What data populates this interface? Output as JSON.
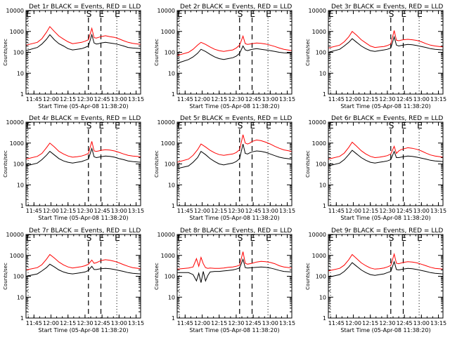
{
  "figure": {
    "x_tick_labels": [
      "11:45",
      "12:00",
      "12:15",
      "12:30",
      "12:45",
      "13:00",
      "13:15"
    ],
    "y_tick_labels": [
      "1",
      "10",
      "100",
      "1000",
      "10000"
    ],
    "xlabel": "Start Time (05-Apr-08 11:38:20)",
    "ylabel": "Counts/sec",
    "markers": [
      "E",
      "S",
      "E",
      "E"
    ],
    "colors": {
      "events": "#000000",
      "lld": "#ff0000"
    }
  },
  "chart_data": [
    {
      "type": "line",
      "title": "Det 1r BLACK = Events, RED = LLD",
      "xlabel": "Start Time (05-Apr-08 11:38:20)",
      "ylabel": "Counts/sec",
      "log_y": true,
      "ylim": [
        1,
        10000
      ],
      "xlim": [
        "11:38",
        "13:19"
      ],
      "x": [
        "11:38",
        "11:48",
        "11:52",
        "11:56",
        "11:59",
        "12:03",
        "12:07",
        "12:11",
        "12:15",
        "12:19",
        "12:23",
        "12:27",
        "12:30",
        "12:33",
        "12:36",
        "12:38",
        "12:40",
        "12:42",
        "12:44",
        "12:48",
        "12:52",
        "12:56",
        "13:00",
        "13:04",
        "13:08",
        "13:12",
        "13:19"
      ],
      "series": [
        {
          "name": "Events",
          "values": [
            120,
            170,
            250,
            420,
            700,
            400,
            260,
            200,
            150,
            130,
            140,
            150,
            170,
            200,
            700,
            280,
            250,
            260,
            280,
            300,
            280,
            260,
            230,
            200,
            170,
            160,
            150
          ]
        },
        {
          "name": "LLD",
          "values": [
            220,
            300,
            450,
            900,
            1700,
            1000,
            600,
            430,
            320,
            260,
            280,
            300,
            340,
            400,
            1400,
            500,
            480,
            520,
            560,
            620,
            560,
            520,
            440,
            360,
            300,
            270,
            240
          ]
        }
      ]
    },
    {
      "type": "line",
      "title": "Det 2r BLACK = Events, RED = LLD",
      "xlabel": "Start Time (05-Apr-08 11:38:20)",
      "ylabel": "Counts/sec",
      "log_y": true,
      "ylim": [
        1,
        10000
      ],
      "xlim": [
        "11:38",
        "13:19"
      ],
      "x": [
        "11:38",
        "11:48",
        "11:52",
        "11:56",
        "11:59",
        "12:03",
        "12:07",
        "12:11",
        "12:15",
        "12:19",
        "12:23",
        "12:27",
        "12:30",
        "12:33",
        "12:36",
        "12:38",
        "12:40",
        "12:42",
        "12:44",
        "12:48",
        "12:52",
        "12:56",
        "13:00",
        "13:04",
        "13:08",
        "13:12",
        "13:19"
      ],
      "series": [
        {
          "name": "Events",
          "values": [
            30,
            45,
            60,
            90,
            140,
            110,
            80,
            60,
            50,
            45,
            50,
            55,
            65,
            90,
            200,
            130,
            120,
            130,
            140,
            150,
            140,
            130,
            120,
            110,
            100,
            95,
            90
          ]
        },
        {
          "name": "LLD",
          "values": [
            70,
            100,
            140,
            220,
            300,
            240,
            180,
            140,
            120,
            110,
            120,
            130,
            160,
            220,
            600,
            260,
            240,
            250,
            260,
            280,
            270,
            250,
            220,
            190,
            160,
            140,
            120
          ]
        }
      ]
    },
    {
      "type": "line",
      "title": "Det 3r BLACK = Events, RED = LLD",
      "xlabel": "Start Time (05-Apr-08 11:38:20)",
      "ylabel": "Counts/sec",
      "log_y": true,
      "ylim": [
        1,
        10000
      ],
      "xlim": [
        "11:38",
        "13:19"
      ],
      "x": [
        "11:38",
        "11:48",
        "11:52",
        "11:56",
        "11:59",
        "12:03",
        "12:07",
        "12:11",
        "12:15",
        "12:19",
        "12:23",
        "12:27",
        "12:30",
        "12:33",
        "12:36",
        "12:38",
        "12:40",
        "12:42",
        "12:44",
        "12:48",
        "12:52",
        "12:56",
        "13:00",
        "13:04",
        "13:08",
        "13:12",
        "13:19"
      ],
      "series": [
        {
          "name": "Events",
          "values": [
            100,
            140,
            200,
            300,
            450,
            300,
            200,
            150,
            120,
            110,
            120,
            130,
            140,
            160,
            550,
            220,
            200,
            210,
            220,
            240,
            230,
            210,
            190,
            170,
            150,
            140,
            130
          ]
        },
        {
          "name": "LLD",
          "values": [
            160,
            220,
            320,
            550,
            1000,
            650,
            400,
            280,
            200,
            170,
            180,
            190,
            210,
            250,
            1100,
            380,
            360,
            380,
            400,
            420,
            400,
            370,
            320,
            260,
            220,
            200,
            180
          ]
        }
      ]
    },
    {
      "type": "line",
      "title": "Det 4r BLACK = Events, RED = LLD",
      "xlabel": "Start Time (05-Apr-08 11:38:20)",
      "ylabel": "Counts/sec",
      "log_y": true,
      "ylim": [
        1,
        10000
      ],
      "xlim": [
        "11:38",
        "13:19"
      ],
      "x": [
        "11:38",
        "11:48",
        "11:52",
        "11:56",
        "11:59",
        "12:03",
        "12:07",
        "12:11",
        "12:15",
        "12:19",
        "12:23",
        "12:27",
        "12:30",
        "12:33",
        "12:36",
        "12:38",
        "12:40",
        "12:42",
        "12:44",
        "12:48",
        "12:52",
        "12:56",
        "13:00",
        "13:04",
        "13:08",
        "13:12",
        "13:19"
      ],
      "series": [
        {
          "name": "Events",
          "values": [
            80,
            110,
            160,
            260,
            400,
            270,
            180,
            140,
            120,
            110,
            120,
            130,
            150,
            170,
            550,
            220,
            200,
            210,
            220,
            240,
            230,
            210,
            180,
            160,
            140,
            130,
            120
          ]
        },
        {
          "name": "LLD",
          "values": [
            170,
            230,
            320,
            600,
            1000,
            650,
            400,
            300,
            240,
            210,
            220,
            240,
            270,
            320,
            1200,
            420,
            400,
            420,
            450,
            480,
            460,
            420,
            360,
            300,
            260,
            240,
            220
          ]
        }
      ]
    },
    {
      "type": "line",
      "title": "Det 5r BLACK = Events, RED = LLD",
      "xlabel": "Start Time (05-Apr-08 11:38:20)",
      "ylabel": "Counts/sec",
      "log_y": true,
      "ylim": [
        1,
        10000
      ],
      "xlim": [
        "11:38",
        "13:19"
      ],
      "x": [
        "11:38",
        "11:48",
        "11:52",
        "11:56",
        "11:59",
        "12:03",
        "12:07",
        "12:11",
        "12:15",
        "12:19",
        "12:23",
        "12:27",
        "12:30",
        "12:33",
        "12:36",
        "12:38",
        "12:40",
        "12:42",
        "12:44",
        "12:48",
        "12:52",
        "12:56",
        "13:00",
        "13:04",
        "13:08",
        "13:12",
        "13:19"
      ],
      "series": [
        {
          "name": "Events",
          "values": [
            60,
            80,
            120,
            200,
            400,
            280,
            180,
            130,
            100,
            90,
            100,
            110,
            130,
            180,
            900,
            320,
            300,
            340,
            380,
            420,
            400,
            360,
            300,
            250,
            210,
            190,
            170
          ]
        },
        {
          "name": "LLD",
          "values": [
            120,
            170,
            260,
            480,
            900,
            650,
            450,
            340,
            280,
            260,
            280,
            300,
            350,
            480,
            2500,
            1000,
            900,
            1000,
            1200,
            1400,
            1300,
            1100,
            900,
            700,
            560,
            470,
            400
          ]
        }
      ]
    },
    {
      "type": "line",
      "title": "Det 6r BLACK = Events, RED = LLD",
      "xlabel": "Start Time (05-Apr-08 11:38:20)",
      "ylabel": "Counts/sec",
      "log_y": true,
      "ylim": [
        1,
        10000
      ],
      "xlim": [
        "11:38",
        "13:19"
      ],
      "x": [
        "11:38",
        "11:48",
        "11:52",
        "11:56",
        "11:59",
        "12:03",
        "12:07",
        "12:11",
        "12:15",
        "12:19",
        "12:23",
        "12:27",
        "12:30",
        "12:33",
        "12:36",
        "12:38",
        "12:40",
        "12:42",
        "12:44",
        "12:48",
        "12:52",
        "12:56",
        "13:00",
        "13:04",
        "13:08",
        "13:12",
        "13:19"
      ],
      "series": [
        {
          "name": "Events",
          "values": [
            80,
            110,
            160,
            280,
            450,
            300,
            200,
            150,
            120,
            110,
            120,
            130,
            140,
            160,
            400,
            200,
            200,
            210,
            220,
            240,
            230,
            210,
            190,
            170,
            150,
            140,
            130
          ]
        },
        {
          "name": "LLD",
          "values": [
            170,
            230,
            330,
            620,
            1100,
            700,
            430,
            300,
            230,
            200,
            210,
            230,
            250,
            300,
            700,
            320,
            420,
            480,
            520,
            600,
            560,
            500,
            420,
            330,
            270,
            240,
            210
          ]
        }
      ]
    },
    {
      "type": "line",
      "title": "Det 7r BLACK = Events, RED = LLD",
      "xlabel": "Start Time (05-Apr-08 11:38:20)",
      "ylabel": "Counts/sec",
      "log_y": true,
      "ylim": [
        1,
        10000
      ],
      "xlim": [
        "11:38",
        "13:19"
      ],
      "x": [
        "11:38",
        "11:48",
        "11:52",
        "11:56",
        "11:59",
        "12:03",
        "12:07",
        "12:11",
        "12:15",
        "12:19",
        "12:23",
        "12:27",
        "12:30",
        "12:33",
        "12:36",
        "12:38",
        "12:40",
        "12:42",
        "12:44",
        "12:48",
        "12:52",
        "12:56",
        "13:00",
        "13:04",
        "13:08",
        "13:12",
        "13:19"
      ],
      "series": [
        {
          "name": "Events",
          "values": [
            100,
            130,
            180,
            260,
            380,
            280,
            200,
            160,
            140,
            130,
            140,
            150,
            160,
            190,
            300,
            210,
            210,
            220,
            230,
            240,
            230,
            210,
            190,
            170,
            150,
            140,
            130
          ]
        },
        {
          "name": "LLD",
          "values": [
            200,
            260,
            360,
            650,
            1100,
            750,
            480,
            350,
            280,
            250,
            270,
            290,
            320,
            380,
            600,
            420,
            450,
            500,
            560,
            620,
            580,
            520,
            440,
            360,
            300,
            260,
            230
          ]
        }
      ]
    },
    {
      "type": "line",
      "title": "Det 8r BLACK = Events, RED = LLD",
      "xlabel": "Start Time (05-Apr-08 11:38:20)",
      "ylabel": "Counts/sec",
      "log_y": true,
      "ylim": [
        1,
        10000
      ],
      "xlim": [
        "11:38",
        "13:19"
      ],
      "x": [
        "11:38",
        "11:48",
        "11:52",
        "11:55",
        "11:57",
        "11:59",
        "12:01",
        "12:03",
        "12:05",
        "12:07",
        "12:11",
        "12:15",
        "12:19",
        "12:23",
        "12:27",
        "12:30",
        "12:33",
        "12:36",
        "12:38",
        "12:40",
        "12:44",
        "12:48",
        "12:52",
        "12:56",
        "13:00",
        "13:04",
        "13:08",
        "13:12",
        "13:19"
      ],
      "series": [
        {
          "name": "Events",
          "values": [
            150,
            150,
            120,
            60,
            140,
            50,
            170,
            60,
            110,
            160,
            170,
            170,
            180,
            190,
            200,
            220,
            250,
            650,
            260,
            250,
            260,
            270,
            280,
            270,
            250,
            220,
            190,
            170,
            160
          ]
        },
        {
          "name": "LLD",
          "values": [
            220,
            250,
            280,
            700,
            300,
            800,
            400,
            260,
            240,
            250,
            240,
            240,
            250,
            270,
            280,
            300,
            340,
            1500,
            420,
            380,
            420,
            480,
            520,
            500,
            460,
            400,
            320,
            280,
            250
          ]
        }
      ]
    },
    {
      "type": "line",
      "title": "Det 9r BLACK = Events, RED = LLD",
      "xlabel": "Start Time (05-Apr-08 11:38:20)",
      "ylabel": "Counts/sec",
      "log_y": true,
      "ylim": [
        1,
        10000
      ],
      "xlim": [
        "11:38",
        "13:19"
      ],
      "x": [
        "11:38",
        "11:48",
        "11:52",
        "11:56",
        "11:59",
        "12:03",
        "12:07",
        "12:11",
        "12:15",
        "12:19",
        "12:23",
        "12:27",
        "12:30",
        "12:33",
        "12:36",
        "12:38",
        "12:40",
        "12:42",
        "12:44",
        "12:48",
        "12:52",
        "12:56",
        "13:00",
        "13:04",
        "13:08",
        "13:12",
        "13:19"
      ],
      "series": [
        {
          "name": "Events",
          "values": [
            90,
            120,
            170,
            280,
            450,
            300,
            200,
            150,
            120,
            110,
            120,
            130,
            150,
            170,
            500,
            210,
            200,
            210,
            220,
            240,
            230,
            210,
            190,
            170,
            150,
            140,
            130
          ]
        },
        {
          "name": "LLD",
          "values": [
            180,
            240,
            340,
            620,
            1100,
            700,
            440,
            320,
            250,
            220,
            230,
            250,
            280,
            330,
            1150,
            420,
            400,
            430,
            460,
            500,
            480,
            440,
            380,
            320,
            270,
            240,
            220
          ]
        }
      ]
    }
  ]
}
